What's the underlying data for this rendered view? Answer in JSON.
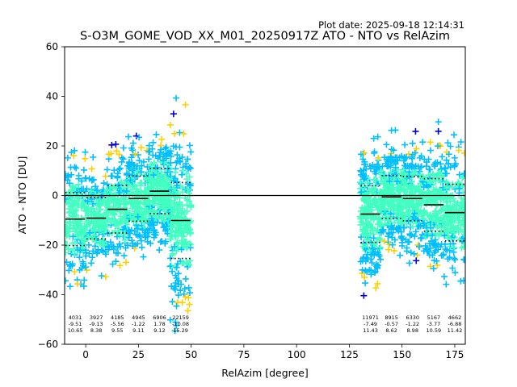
{
  "plot_date": "Plot date: 2025-09-18 12:14:31",
  "chart_data": {
    "type": "scatter",
    "title": "S-O3M_GOME_VOD_XX_M01_20250917Z ATO - NTO vs RelAzim",
    "xlabel": "RelAzim [degree]",
    "ylabel": "ATO - NTO [DU]",
    "xlim": [
      -10,
      180
    ],
    "ylim": [
      -60,
      60
    ],
    "xticks": [
      0,
      25,
      50,
      75,
      100,
      125,
      150,
      175
    ],
    "yticks": [
      -60,
      -40,
      -20,
      0,
      20,
      40,
      60
    ],
    "zero_line": 0,
    "marker": "+",
    "colormap": "jet-like density coloring",
    "colors": {
      "low_density": "#00bfff",
      "mid_density": "#40ffc0",
      "high_density": "#ffd000",
      "peak_density": "#ff8000",
      "sparse": "#0000cd",
      "mean_line": "#000000"
    },
    "bins": [
      {
        "center": -5,
        "x0": -10,
        "x1": 0,
        "count": 4031,
        "mean": -9.51,
        "std": 10.65
      },
      {
        "center": 5,
        "x0": 0,
        "x1": 10,
        "count": 3927,
        "mean": -9.13,
        "std": 8.38
      },
      {
        "center": 15,
        "x0": 10,
        "x1": 20,
        "count": 4185,
        "mean": -5.56,
        "std": 9.55
      },
      {
        "center": 25,
        "x0": 20,
        "x1": 30,
        "count": 4945,
        "mean": -1.22,
        "std": 9.11
      },
      {
        "center": 35,
        "x0": 30,
        "x1": 40,
        "count": 6906,
        "mean": 1.78,
        "std": 9.12
      },
      {
        "center": 45,
        "x0": 40,
        "x1": 50,
        "count": 22159,
        "mean": -10.08,
        "std": 15.29
      },
      {
        "center": 135,
        "x0": 130,
        "x1": 140,
        "count": 11971,
        "mean": -7.49,
        "std": 11.43
      },
      {
        "center": 145,
        "x0": 140,
        "x1": 150,
        "count": 8915,
        "mean": -0.57,
        "std": 8.62
      },
      {
        "center": 155,
        "x0": 150,
        "x1": 160,
        "count": 6330,
        "mean": -1.22,
        "std": 8.98
      },
      {
        "center": 165,
        "x0": 160,
        "x1": 170,
        "count": 5167,
        "mean": -3.77,
        "std": 10.59
      },
      {
        "center": 175,
        "x0": 170,
        "x1": 180,
        "count": 4662,
        "mean": -6.88,
        "std": 11.42
      }
    ],
    "clusters": [
      {
        "x_range": [
          -10,
          51
        ],
        "y_center": -8,
        "y_spread": 18
      },
      {
        "x_range": [
          130,
          180
        ],
        "y_center": -5,
        "y_spread": 16
      }
    ],
    "bin_stats_labels": [
      {
        "count": "4031",
        "mean": "-9.51",
        "std": "10.65"
      },
      {
        "count": "3927",
        "mean": "-9.13",
        "std": "8.38"
      },
      {
        "count": "4185",
        "mean": "-5.56",
        "std": "9.55"
      },
      {
        "count": "4945",
        "mean": "-1.22",
        "std": "9.11"
      },
      {
        "count": "6906",
        "mean": "1.78",
        "std": "9.12"
      },
      {
        "count": "22159",
        "mean": "-10.08",
        "std": "15.29"
      },
      {
        "count": "11971",
        "mean": "-7.49",
        "std": "11.43"
      },
      {
        "count": "8915",
        "mean": "-0.57",
        "std": "8.62"
      },
      {
        "count": "6330",
        "mean": "-1.22",
        "std": "8.98"
      },
      {
        "count": "5167",
        "mean": "-3.77",
        "std": "10.59"
      },
      {
        "count": "4662",
        "mean": "-6.88",
        "std": "11.42"
      }
    ]
  }
}
